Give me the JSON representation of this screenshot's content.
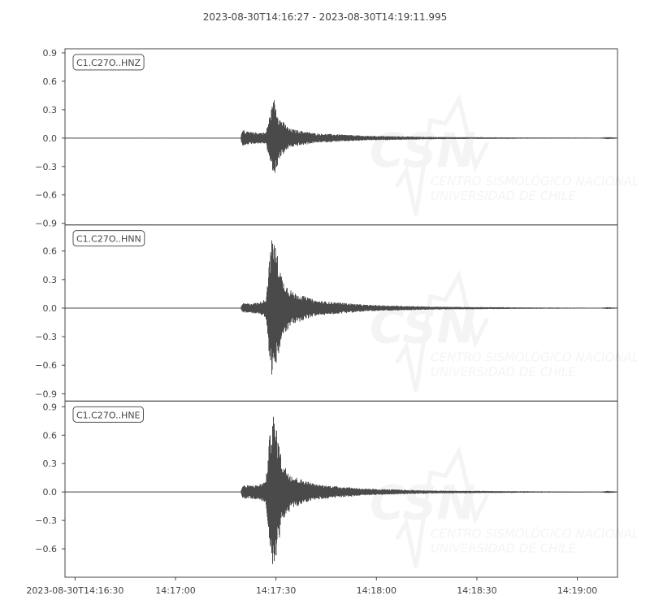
{
  "chart_data": {
    "type": "line",
    "title": "2023-08-30T14:16:27  -  2023-08-30T14:19:11.995",
    "start_time": "2023-08-30T14:16:27",
    "end_time": "2023-08-30T14:19:11.995",
    "x_tick_labels": [
      "2023-08-30T14:16:30",
      "14:17:00",
      "14:17:30",
      "14:18:00",
      "14:18:30",
      "14:19:00"
    ],
    "x_tick_seconds": [
      3,
      33,
      63,
      93,
      123,
      153
    ],
    "grid": false,
    "watermark": {
      "logo": "CSN",
      "line1": "CENTRO SISMOLÓGICO NACIONAL",
      "line2": "UNIVERSIDAD DE CHILE"
    },
    "colors": {
      "trace": "#4a4a4a",
      "axes": "#444444",
      "watermark": "#f4f4f4"
    },
    "series": [
      {
        "name": "C1.C27O..HNZ",
        "ylim": [
          -0.917,
          0.943
        ],
        "y_ticks": [
          0.9,
          0.6,
          0.3,
          0.0,
          -0.3,
          -0.6,
          -0.9
        ],
        "y_tick_labels": [
          "0.9",
          "0.6",
          "0.3",
          "0.0",
          "−0.3",
          "−0.6",
          "−0.9"
        ],
        "peak_max": 0.42,
        "peak_min": -0.38,
        "envelope_seconds": [
          0,
          52.5,
          53,
          54,
          57,
          60,
          61.5,
          62.5,
          64,
          67,
          75,
          90,
          110,
          140,
          160,
          162,
          164.9
        ],
        "envelope_amplitude": [
          0.003,
          0.003,
          0.11,
          0.07,
          0.06,
          0.06,
          0.3,
          0.42,
          0.22,
          0.1,
          0.05,
          0.025,
          0.012,
          0.006,
          0.004,
          0.012,
          0.005
        ]
      },
      {
        "name": "C1.C27O..HNN",
        "ylim": [
          -0.977,
          0.874
        ],
        "y_ticks": [
          0.6,
          0.3,
          0.0,
          -0.3,
          -0.6,
          -0.9
        ],
        "y_tick_labels": [
          "0.6",
          "0.3",
          "0.0",
          "−0.3",
          "−0.6",
          "−0.9"
        ],
        "peak_max": 0.68,
        "peak_min": -0.79,
        "envelope_seconds": [
          0,
          52.5,
          53,
          55,
          58,
          60,
          61,
          62,
          63.5,
          65,
          68,
          75,
          90,
          110,
          140,
          160,
          162,
          164.9
        ],
        "envelope_amplitude": [
          0.003,
          0.003,
          0.05,
          0.05,
          0.06,
          0.1,
          0.5,
          0.79,
          0.55,
          0.3,
          0.17,
          0.08,
          0.035,
          0.015,
          0.007,
          0.004,
          0.01,
          0.005
        ]
      },
      {
        "name": "C1.C27O..HNE",
        "ylim": [
          -0.9,
          0.96
        ],
        "y_ticks": [
          0.9,
          0.6,
          0.3,
          0.0,
          -0.3,
          -0.6
        ],
        "y_tick_labels": [
          "0.9",
          "0.6",
          "0.3",
          "0.0",
          "−0.3",
          "−0.6"
        ],
        "peak_max": 0.87,
        "peak_min": -0.82,
        "envelope_seconds": [
          0,
          52.5,
          53,
          55,
          58,
          60,
          61,
          62,
          63.5,
          65,
          68,
          75,
          90,
          110,
          140,
          160,
          162,
          164.9
        ],
        "envelope_amplitude": [
          0.003,
          0.003,
          0.07,
          0.07,
          0.08,
          0.12,
          0.55,
          0.87,
          0.6,
          0.3,
          0.17,
          0.08,
          0.035,
          0.015,
          0.007,
          0.004,
          0.012,
          0.005
        ]
      }
    ]
  }
}
